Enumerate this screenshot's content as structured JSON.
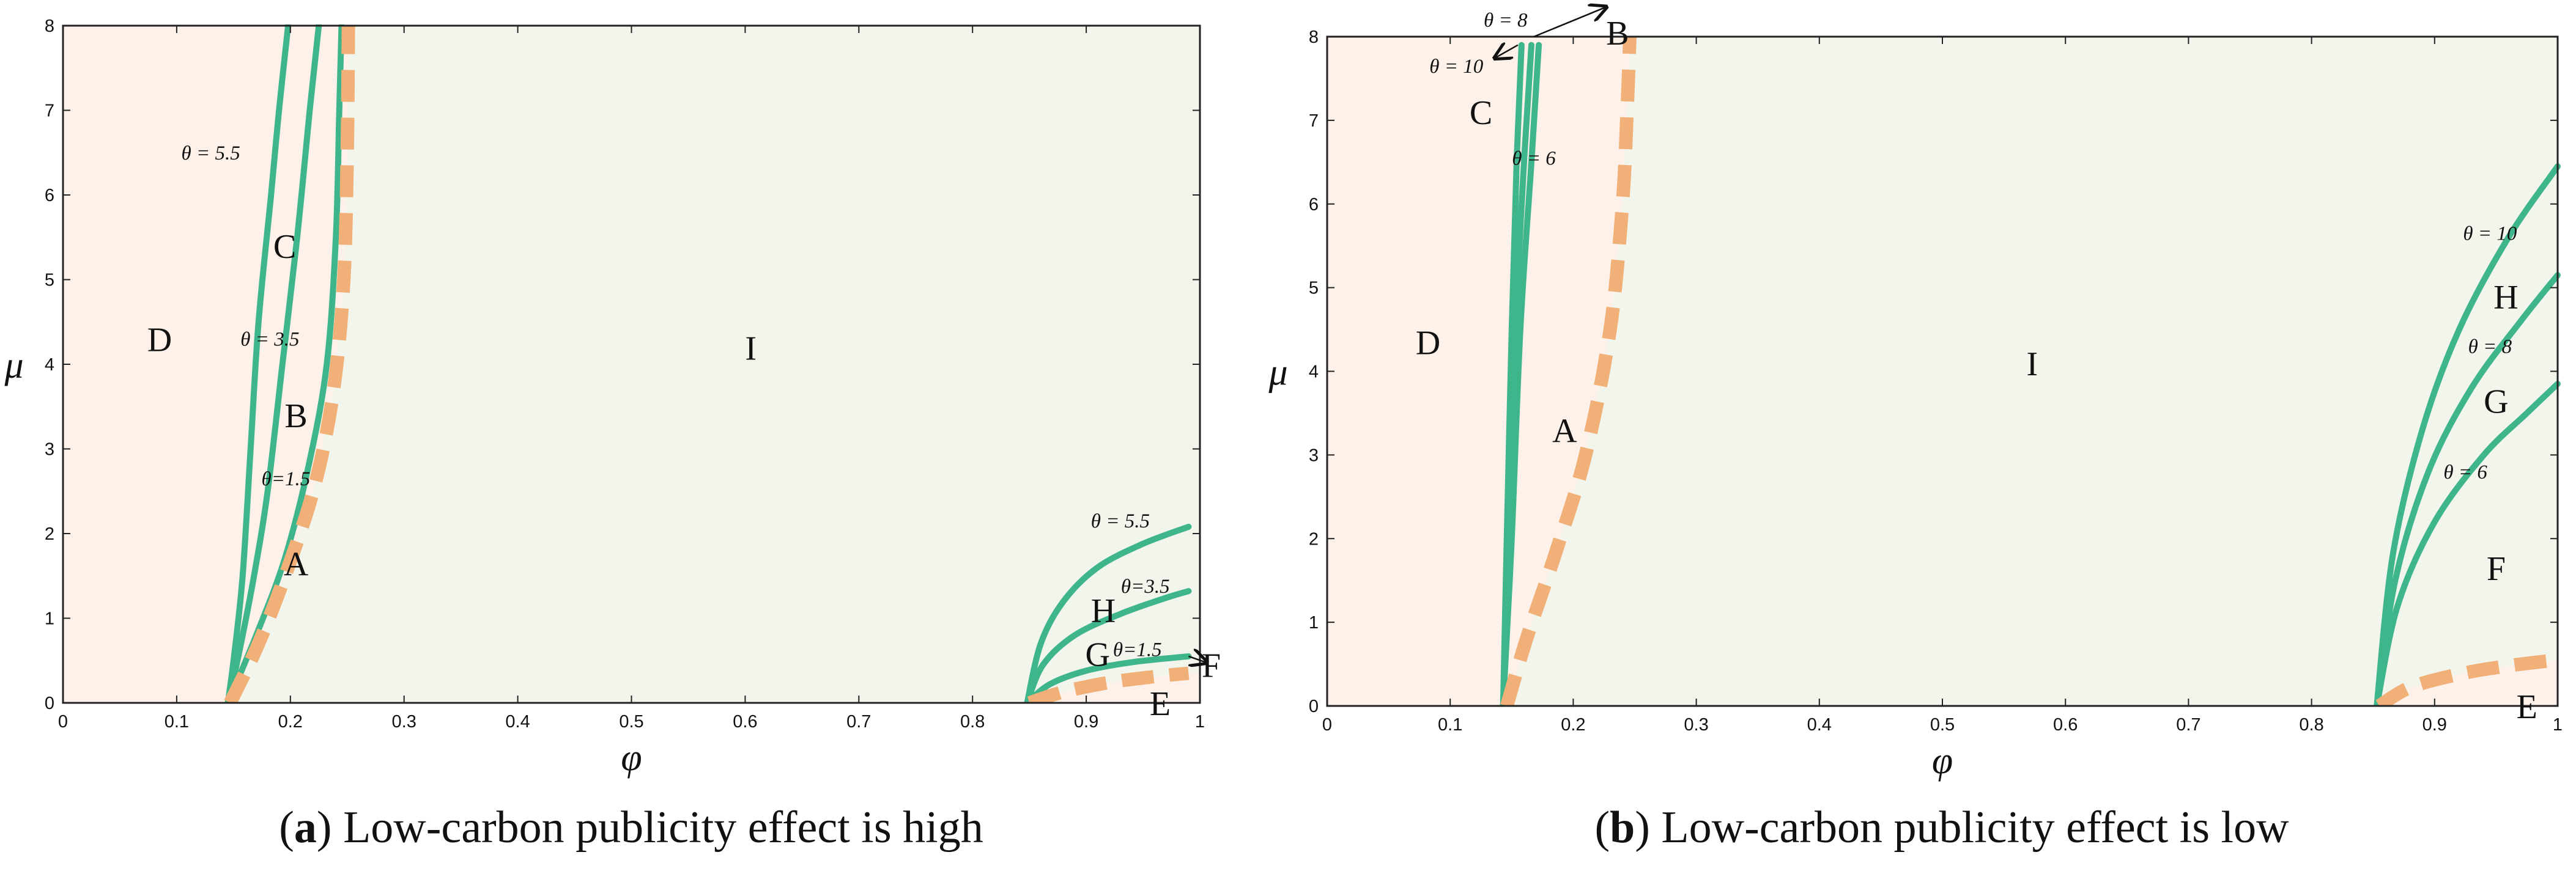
{
  "chart_data": [
    {
      "type": "line",
      "panel": "a",
      "caption": {
        "letter": "a",
        "text": "Low-carbon publicity effect is high"
      },
      "xlabel": "φ",
      "ylabel": "μ",
      "xlim": [
        0,
        1
      ],
      "ylim": [
        0,
        8
      ],
      "xticks": [
        "0",
        "0.1",
        "0.2",
        "0.3",
        "0.4",
        "0.5",
        "0.6",
        "0.7",
        "0.8",
        "0.9",
        "1"
      ],
      "yticks": [
        "0",
        "1",
        "2",
        "3",
        "4",
        "5",
        "6",
        "7",
        "8"
      ],
      "colors": {
        "left_region": "#fdf1e9",
        "mid_region": "#f2f5ec",
        "curve": "#3fb58c",
        "dashed": "#f0b077"
      },
      "boundaries": [
        {
          "name": "θ=5.5 left",
          "style": "solid",
          "points": [
            [
              0.145,
              0
            ],
            [
              0.15,
              0.5
            ],
            [
              0.158,
              1.5
            ],
            [
              0.165,
              3.0
            ],
            [
              0.172,
              4.5
            ],
            [
              0.183,
              6.0
            ],
            [
              0.19,
              7.0
            ],
            [
              0.198,
              8.0
            ]
          ]
        },
        {
          "name": "θ=3.5 left",
          "style": "solid",
          "points": [
            [
              0.145,
              0
            ],
            [
              0.155,
              0.6
            ],
            [
              0.168,
              1.5
            ],
            [
              0.18,
              2.5
            ],
            [
              0.193,
              4.0
            ],
            [
              0.206,
              5.5
            ],
            [
              0.217,
              7.0
            ],
            [
              0.225,
              8.0
            ]
          ]
        },
        {
          "name": "θ=1.5 left",
          "style": "solid",
          "points": [
            [
              0.145,
              0
            ],
            [
              0.17,
              0.8
            ],
            [
              0.195,
              1.7
            ],
            [
              0.216,
              2.8
            ],
            [
              0.232,
              4.0
            ],
            [
              0.24,
              5.5
            ],
            [
              0.243,
              7.0
            ],
            [
              0.245,
              8.0
            ]
          ]
        },
        {
          "name": "boundary I left",
          "style": "dashed",
          "points": [
            [
              0.147,
              0
            ],
            [
              0.172,
              0.7
            ],
            [
              0.198,
              1.6
            ],
            [
              0.222,
              2.6
            ],
            [
              0.238,
              3.7
            ],
            [
              0.247,
              5.0
            ],
            [
              0.25,
              6.5
            ],
            [
              0.251,
              8.0
            ]
          ]
        },
        {
          "name": "θ=5.5 right",
          "style": "solid",
          "points": [
            [
              0.848,
              0
            ],
            [
              0.86,
              0.7
            ],
            [
              0.88,
              1.2
            ],
            [
              0.91,
              1.6
            ],
            [
              0.95,
              1.88
            ],
            [
              0.99,
              2.08
            ]
          ]
        },
        {
          "name": "θ=3.5 right",
          "style": "solid",
          "points": [
            [
              0.848,
              0
            ],
            [
              0.862,
              0.45
            ],
            [
              0.89,
              0.8
            ],
            [
              0.93,
              1.05
            ],
            [
              0.97,
              1.24
            ],
            [
              0.99,
              1.32
            ]
          ]
        },
        {
          "name": "θ=1.5 right",
          "style": "solid",
          "points": [
            [
              0.848,
              0
            ],
            [
              0.868,
              0.22
            ],
            [
              0.9,
              0.38
            ],
            [
              0.94,
              0.48
            ],
            [
              0.99,
              0.55
            ]
          ]
        },
        {
          "name": "boundary I right",
          "style": "dashed",
          "points": [
            [
              0.85,
              0
            ],
            [
              0.88,
              0.13
            ],
            [
              0.92,
              0.24
            ],
            [
              0.96,
              0.31
            ],
            [
              0.99,
              0.35
            ]
          ]
        }
      ],
      "regions": [
        {
          "label": "D",
          "x": 0.085,
          "y": 4.3
        },
        {
          "label": "C",
          "x": 0.195,
          "y": 5.4
        },
        {
          "label": "B",
          "x": 0.205,
          "y": 3.4
        },
        {
          "label": "A",
          "x": 0.205,
          "y": 1.65
        },
        {
          "label": "I",
          "x": 0.605,
          "y": 4.2
        },
        {
          "label": "H",
          "x": 0.915,
          "y": 1.1
        },
        {
          "label": "G",
          "x": 0.91,
          "y": 0.58
        },
        {
          "label": "E",
          "x": 0.965,
          "y": 0.0
        },
        {
          "label": "F",
          "x": 1.01,
          "y": 0.45
        }
      ],
      "annotations": [
        {
          "text": "θ = 5.5",
          "x": 0.13,
          "y": 6.5
        },
        {
          "text": "θ = 3.5",
          "x": 0.182,
          "y": 4.3
        },
        {
          "text": "θ=1.5",
          "x": 0.196,
          "y": 2.65
        },
        {
          "text": "θ = 5.5",
          "x": 0.93,
          "y": 2.15
        },
        {
          "text": "θ=3.5",
          "x": 0.952,
          "y": 1.38
        },
        {
          "text": "θ=1.5",
          "x": 0.945,
          "y": 0.63
        }
      ],
      "arrows": [
        {
          "from": [
            0.99,
            0.55
          ],
          "to": [
            1.005,
            0.48
          ]
        }
      ]
    },
    {
      "type": "line",
      "panel": "b",
      "caption": {
        "letter": "b",
        "text": "Low-carbon publicity effect is low"
      },
      "xlabel": "φ",
      "ylabel": "μ",
      "xlim": [
        0,
        1
      ],
      "ylim": [
        0,
        8
      ],
      "xticks": [
        "0",
        "0.1",
        "0.2",
        "0.3",
        "0.4",
        "0.5",
        "0.6",
        "0.7",
        "0.8",
        "0.9",
        "1"
      ],
      "yticks": [
        "0",
        "1",
        "2",
        "3",
        "4",
        "5",
        "6",
        "7",
        "8"
      ],
      "colors": {
        "left_region": "#fdf1e9",
        "mid_region": "#f2f5ec",
        "curve": "#3fb58c",
        "dashed": "#f0b077"
      },
      "boundaries": [
        {
          "name": "θ=10 left",
          "style": "solid",
          "points": [
            [
              0.143,
              0
            ],
            [
              0.146,
              2.0
            ],
            [
              0.15,
              4.5
            ],
            [
              0.154,
              6.5
            ],
            [
              0.158,
              7.9
            ]
          ]
        },
        {
          "name": "θ=8 left",
          "style": "solid",
          "points": [
            [
              0.143,
              0
            ],
            [
              0.148,
              2.0
            ],
            [
              0.153,
              4.5
            ],
            [
              0.16,
              6.5
            ],
            [
              0.166,
              7.9
            ]
          ]
        },
        {
          "name": "θ=6 left",
          "style": "solid",
          "points": [
            [
              0.143,
              0
            ],
            [
              0.15,
              2.0
            ],
            [
              0.157,
              4.5
            ],
            [
              0.166,
              6.5
            ],
            [
              0.172,
              7.9
            ]
          ]
        },
        {
          "name": "boundary I left",
          "style": "dashed",
          "points": [
            [
              0.146,
              0
            ],
            [
              0.162,
              0.8
            ],
            [
              0.185,
              1.8
            ],
            [
              0.21,
              3.0
            ],
            [
              0.23,
              4.5
            ],
            [
              0.24,
              6.0
            ],
            [
              0.244,
              7.2
            ],
            [
              0.246,
              8.0
            ]
          ]
        },
        {
          "name": "θ=10 right",
          "style": "solid",
          "points": [
            [
              0.853,
              0
            ],
            [
              0.866,
              1.8
            ],
            [
              0.89,
              3.3
            ],
            [
              0.92,
              4.5
            ],
            [
              0.96,
              5.6
            ],
            [
              1.0,
              6.45
            ]
          ]
        },
        {
          "name": "θ=8 right",
          "style": "solid",
          "points": [
            [
              0.853,
              0
            ],
            [
              0.868,
              1.5
            ],
            [
              0.895,
              2.8
            ],
            [
              0.93,
              3.8
            ],
            [
              0.97,
              4.6
            ],
            [
              1.0,
              5.15
            ]
          ]
        },
        {
          "name": "θ=6 right",
          "style": "solid",
          "points": [
            [
              0.853,
              0
            ],
            [
              0.87,
              1.2
            ],
            [
              0.9,
              2.2
            ],
            [
              0.94,
              3.0
            ],
            [
              0.975,
              3.5
            ],
            [
              1.0,
              3.85
            ]
          ]
        },
        {
          "name": "boundary I right",
          "style": "dashed",
          "points": [
            [
              0.855,
              0
            ],
            [
              0.88,
              0.22
            ],
            [
              0.92,
              0.38
            ],
            [
              0.96,
              0.48
            ],
            [
              1.0,
              0.55
            ]
          ]
        }
      ],
      "regions": [
        {
          "label": "D",
          "x": 0.082,
          "y": 4.35
        },
        {
          "label": "A",
          "x": 0.193,
          "y": 3.3
        },
        {
          "label": "I",
          "x": 0.573,
          "y": 4.1
        },
        {
          "label": "H",
          "x": 0.958,
          "y": 4.9
        },
        {
          "label": "G",
          "x": 0.95,
          "y": 3.65
        },
        {
          "label": "F",
          "x": 0.95,
          "y": 1.65
        },
        {
          "label": "E",
          "x": 0.975,
          "y": 0.0
        },
        {
          "label": "C",
          "x": 0.125,
          "y": 7.1
        },
        {
          "label": "B",
          "x": 0.236,
          "y": 8.05
        }
      ],
      "annotations": [
        {
          "text": "θ = 8",
          "x": 0.145,
          "y": 8.2
        },
        {
          "text": "θ = 10",
          "x": 0.105,
          "y": 7.65
        },
        {
          "text": "θ = 6",
          "x": 0.168,
          "y": 6.55
        },
        {
          "text": "θ = 10",
          "x": 0.945,
          "y": 5.65
        },
        {
          "text": "θ = 8",
          "x": 0.945,
          "y": 4.3
        },
        {
          "text": "θ = 6",
          "x": 0.925,
          "y": 2.8
        }
      ],
      "arrows": [
        {
          "from": [
            0.168,
            8.0
          ],
          "to": [
            0.226,
            8.35
          ]
        },
        {
          "from": [
            0.155,
            7.9
          ],
          "to": [
            0.137,
            7.75
          ]
        }
      ]
    }
  ]
}
